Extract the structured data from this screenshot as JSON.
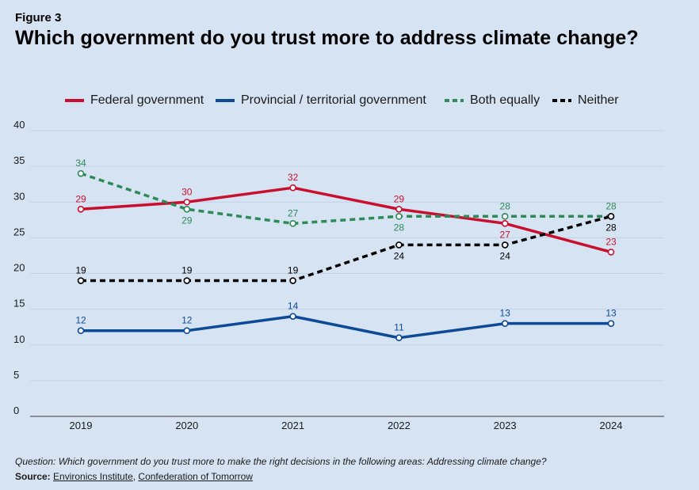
{
  "figure_label": "Figure 3",
  "title": "Which government do you trust more to address climate change?",
  "legend": [
    {
      "name": "Federal government",
      "color": "#c8102e",
      "style": "solid"
    },
    {
      "name": "Provincial / territorial government",
      "color": "#0d4a96",
      "style": "solid"
    },
    {
      "name": "Both equally",
      "color": "#2e8a57",
      "style": "dashed"
    },
    {
      "name": "Neither",
      "color": "#000000",
      "style": "dashed"
    }
  ],
  "chart_data": {
    "type": "line",
    "title": "Which government do you trust more to address climate change?",
    "xlabel": "",
    "ylabel": "",
    "x": [
      "2019",
      "2020",
      "2021",
      "2022",
      "2023",
      "2024"
    ],
    "ylim": [
      0,
      40
    ],
    "yticks": [
      "0",
      "5",
      "10",
      "15",
      "20",
      "25",
      "30",
      "35",
      "40"
    ],
    "grid": true,
    "legend_position": "top",
    "series": [
      {
        "name": "Federal government",
        "color": "#c8102e",
        "style": "solid",
        "values": [
          29,
          30,
          32,
          29,
          27,
          23
        ],
        "label_pos": [
          "above",
          "above",
          "above",
          "above",
          "below",
          "above"
        ]
      },
      {
        "name": "Provincial / territorial government",
        "color": "#0d4a96",
        "style": "solid",
        "values": [
          12,
          12,
          14,
          11,
          13,
          13
        ],
        "label_pos": [
          "above",
          "above",
          "above",
          "above",
          "above",
          "above"
        ]
      },
      {
        "name": "Both equally",
        "color": "#2e8a57",
        "style": "dashed",
        "values": [
          34,
          29,
          27,
          28,
          28,
          28
        ],
        "label_pos": [
          "above",
          "below",
          "above",
          "below",
          "above",
          "above"
        ]
      },
      {
        "name": "Neither",
        "color": "#000000",
        "style": "dashed",
        "values": [
          19,
          19,
          19,
          24,
          24,
          28
        ],
        "label_pos": [
          "above",
          "above",
          "above",
          "below",
          "below",
          "below"
        ]
      }
    ]
  },
  "footer": {
    "question": "Question: Which government do you trust more to make the right decisions in the following areas: Addressing climate change?",
    "source_label": "Source:",
    "source_link_1": "Environics Institute",
    "source_sep": ", ",
    "source_link_2": "Confederation of Tomorrow"
  }
}
